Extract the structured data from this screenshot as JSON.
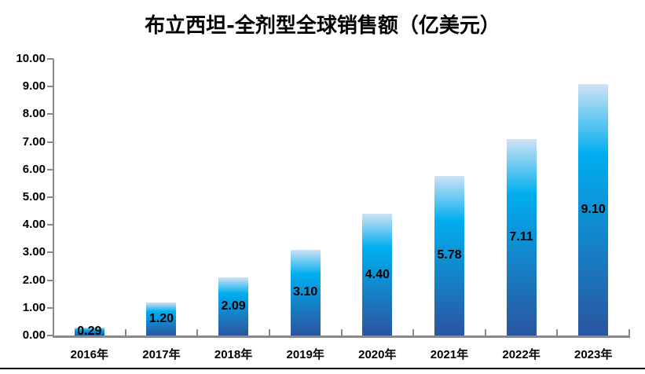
{
  "title": "布立西坦-全剂型全球销售额（亿美元）",
  "chart_data": {
    "type": "bar",
    "title": "布立西坦-全剂型全球销售额（亿美元）",
    "categories": [
      "2016年",
      "2017年",
      "2018年",
      "2019年",
      "2020年",
      "2021年",
      "2022年",
      "2023年"
    ],
    "values": [
      0.29,
      1.2,
      2.09,
      3.1,
      4.4,
      5.78,
      7.11,
      9.1
    ],
    "data_labels": [
      "0.29",
      "1.20",
      "2.09",
      "3.10",
      "4.40",
      "5.78",
      "7.11",
      "9.10"
    ],
    "data_label_position": "inside-center",
    "xlabel": "",
    "ylabel": "",
    "ylim": [
      0,
      10
    ],
    "ytick_step": 1,
    "ytick_labels": [
      "0.00",
      "1.00",
      "2.00",
      "3.00",
      "4.00",
      "5.00",
      "6.00",
      "7.00",
      "8.00",
      "9.00",
      "10.00"
    ],
    "grid": false,
    "legend": "none",
    "colors": {
      "bar_gradient_top": "#cfe2f4",
      "bar_gradient_mid": "#00aeef",
      "bar_gradient_bottom": "#2a55a0",
      "axis_line": "#898989",
      "text": "#000000",
      "bottom_border": "#000000"
    }
  }
}
